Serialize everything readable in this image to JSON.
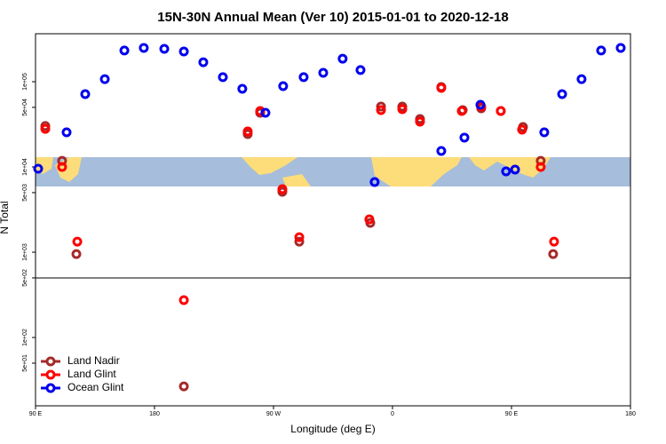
{
  "chart_data": {
    "type": "scatter",
    "title": "15N-30N Annual Mean (Ver 10)   2015-01-01 to 2020-12-18",
    "x_label": "Longitude (deg E)",
    "y_label": "N Total",
    "xlim": [
      90,
      540
    ],
    "xticks": [
      {
        "value": 90,
        "label": "90 E"
      },
      180,
      {
        "value": 270,
        "label": "90 W"
      },
      {
        "value": 360,
        "label": "0"
      },
      {
        "value": 450,
        "label": "90 E"
      },
      {
        "value": 540,
        "label": "180"
      }
    ],
    "ylim": [
      15.8,
      365000
    ],
    "log_y": true,
    "yticks": [
      {
        "value": 50,
        "label": "5e+01"
      },
      {
        "value": 100,
        "label": "1e+02"
      },
      {
        "value": 500,
        "label": "5e+02"
      },
      {
        "value": 1000,
        "label": "1e+03"
      },
      {
        "value": 5000,
        "label": "5e+03"
      },
      {
        "value": 10000,
        "label": "1e+04"
      },
      {
        "value": 50000,
        "label": "5e+04"
      },
      {
        "value": 100000,
        "label": "1e+05"
      }
    ],
    "grid": false,
    "legend": "lower left",
    "series": [
      {
        "name": "Land Nadir",
        "color": "#a52a2a",
        "x": [
          97.4,
          110.1,
          120.9,
          202.2,
          250.5,
          259.9,
          276.7,
          289.5,
          343.2,
          351.3,
          367.4,
          380.8,
          396.9,
          413.1,
          427.1,
          441.9,
          458.7,
          472.1,
          481.5
        ],
        "values": [
          30200,
          11800,
          952,
          26.7,
          24300,
          43200,
          5110,
          1330,
          2210,
          51100,
          51100,
          36500,
          86600,
          46400,
          48700,
          45300,
          29400,
          11800,
          952
        ]
      },
      {
        "name": "Land Glint",
        "color": "#ff0000",
        "x": [
          97.4,
          110.1,
          121.6,
          202.2,
          250.5,
          259.9,
          276.7,
          289.5,
          342.5,
          351.3,
          367.4,
          380.8,
          396.9,
          412.4,
          427.1,
          441.9,
          458.0,
          472.1,
          482.2
        ],
        "values": [
          28000,
          10000,
          1330,
          274,
          26100,
          45300,
          5490,
          1500,
          2430,
          46400,
          47500,
          34000,
          84500,
          45300,
          51100,
          45300,
          27400,
          10000,
          1330
        ]
      },
      {
        "name": "Ocean Glint",
        "color": "#0000ee",
        "x": [
          92.0,
          113.5,
          127.6,
          142.4,
          157.2,
          171.9,
          187.4,
          202.2,
          216.9,
          231.7,
          246.4,
          263.9,
          277.3,
          292.8,
          307.6,
          322.3,
          335.8,
          346.5,
          396.9,
          414.4,
          426.5,
          445.9,
          452.7,
          474.8,
          488.3,
          503.0,
          517.8,
          532.6
        ],
        "values": [
          9530,
          25500,
          71500,
          107000,
          232000,
          249000,
          243000,
          226000,
          169000,
          113000,
          82600,
          43200,
          88700,
          113000,
          127000,
          186000,
          137000,
          6650,
          15400,
          22100,
          53600,
          8870,
          9300,
          25500,
          71500,
          107000,
          232000,
          249000
        ]
      }
    ]
  }
}
